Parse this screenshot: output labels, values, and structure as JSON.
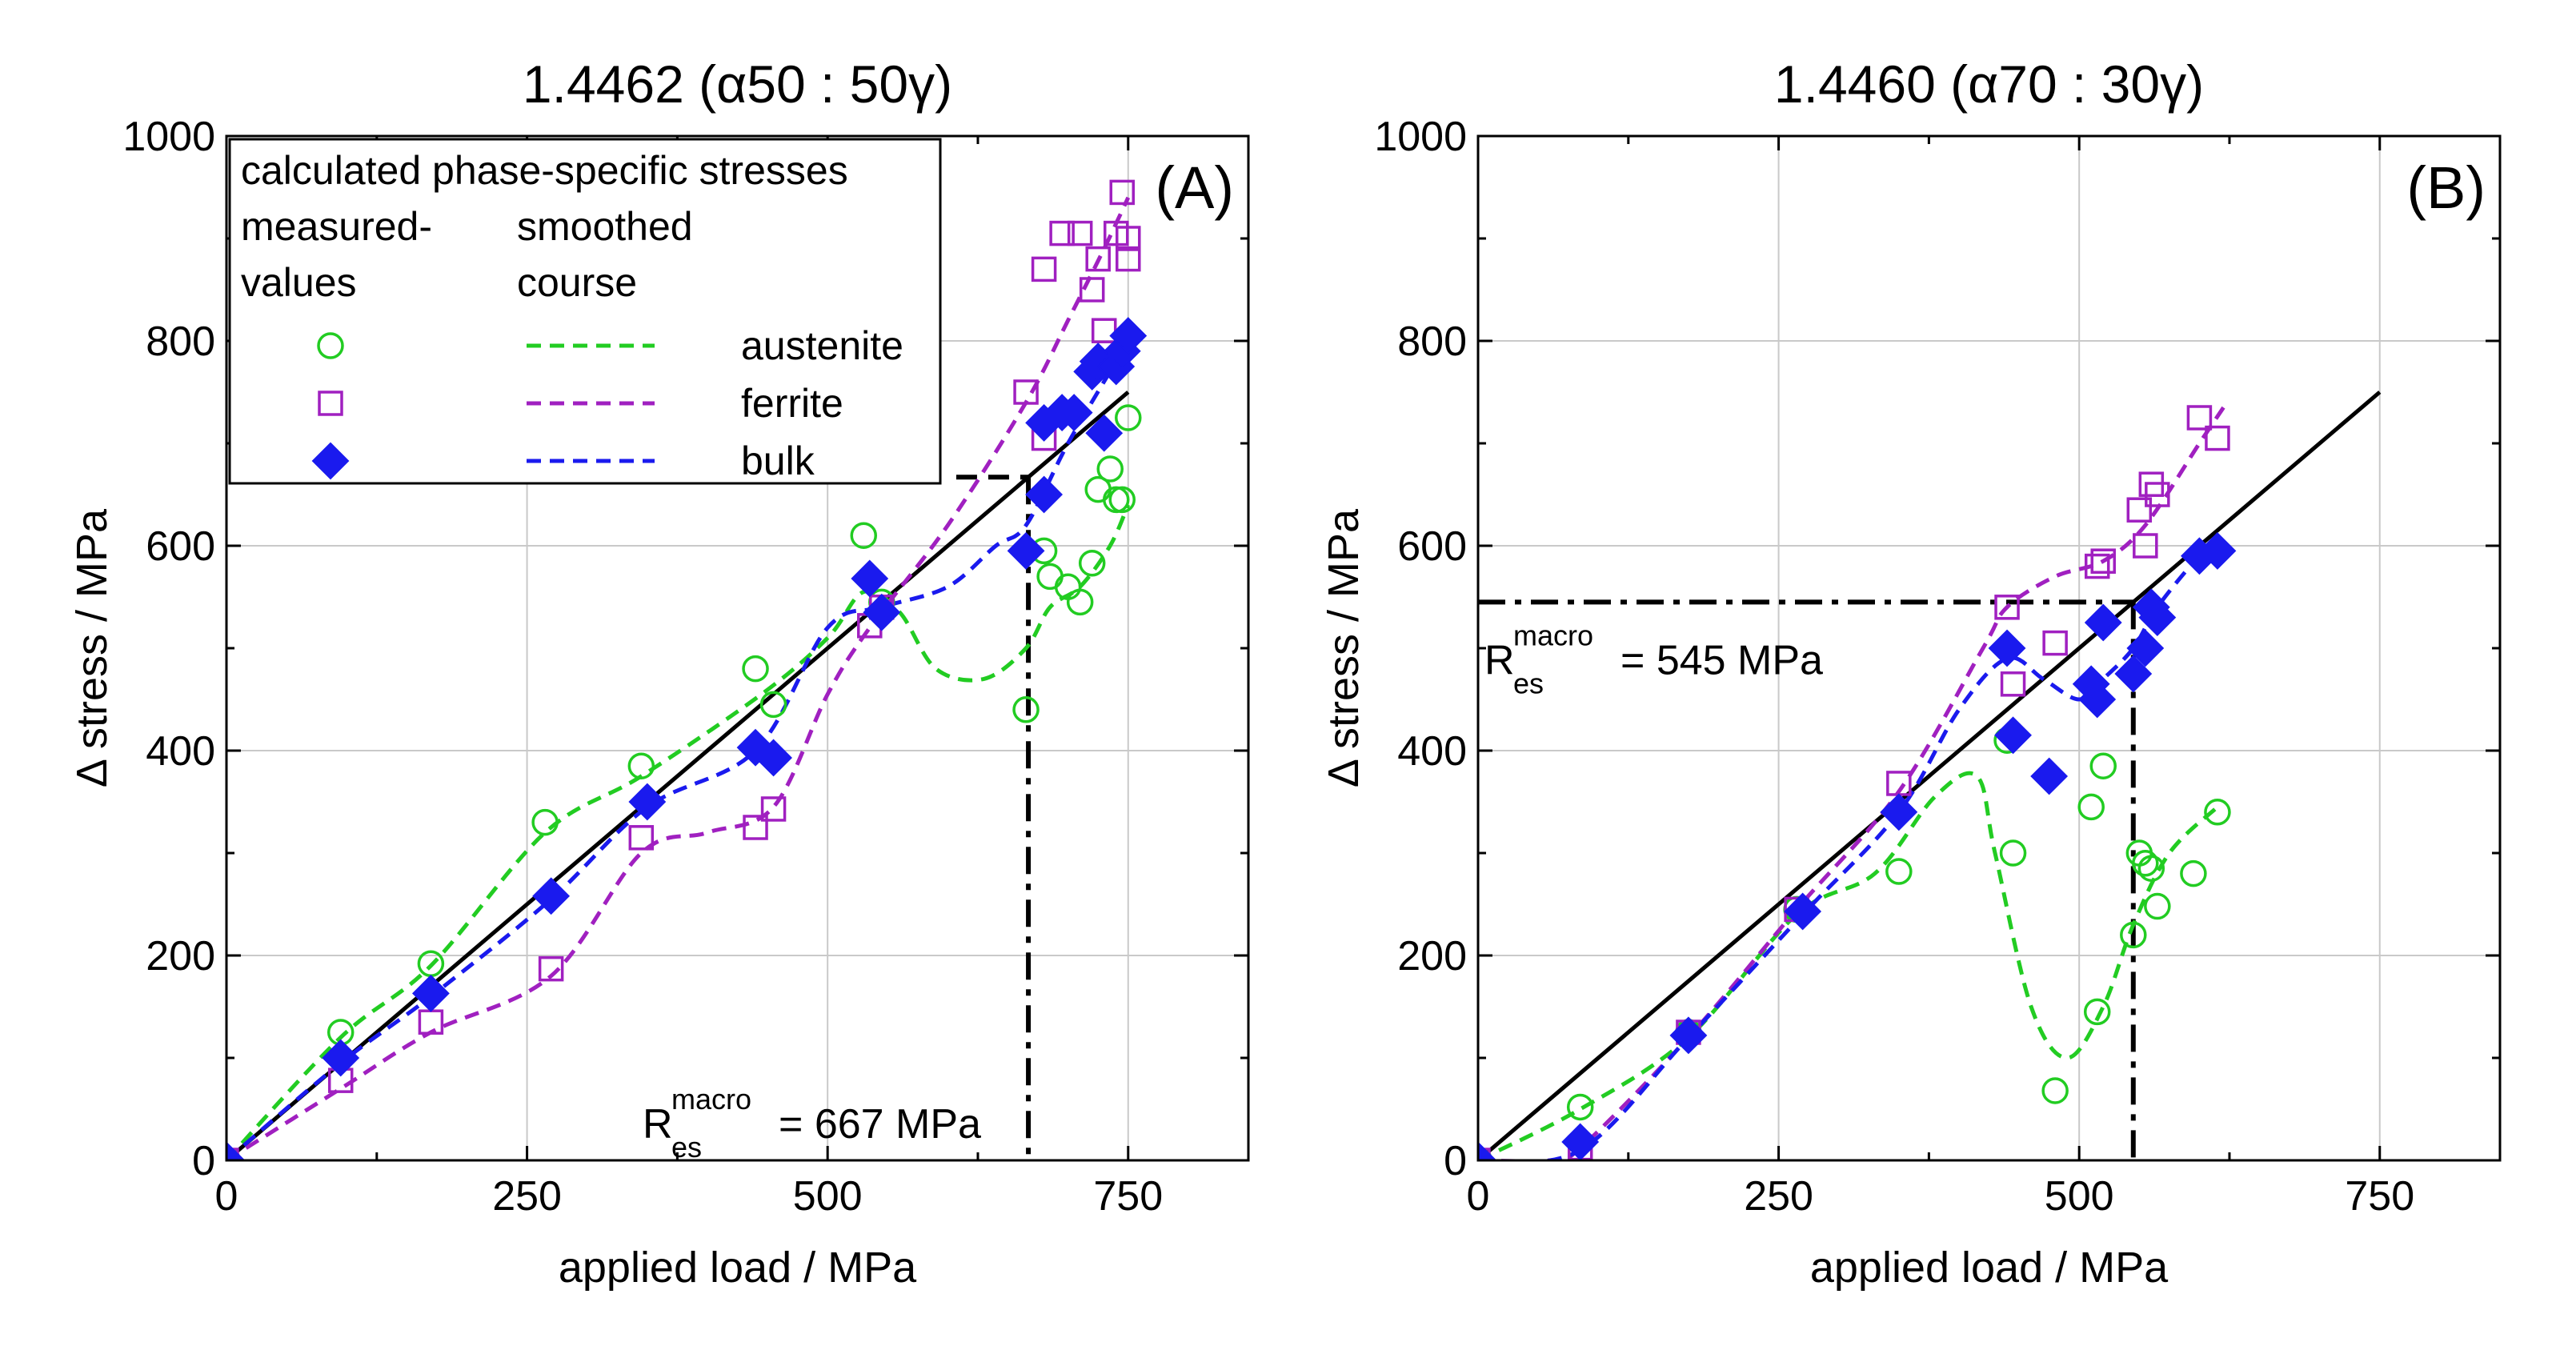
{
  "chart_data": [
    {
      "type": "scatter",
      "panel_label": "(A)",
      "title": "1.4462 (α50 : 50γ)",
      "xlabel": "applied load / MPa",
      "ylabel": "Δ stress / MPa",
      "xlim": [
        0,
        850
      ],
      "ylim": [
        0,
        1000
      ],
      "xticks": [
        0,
        250,
        500,
        750
      ],
      "yticks": [
        0,
        200,
        400,
        600,
        800,
        1000
      ],
      "grid": true,
      "legend": {
        "placement": "top-left",
        "header": "calculated phase-specific stresses",
        "col1_header": [
          "measured-",
          "values"
        ],
        "col2_header": [
          "smoothed",
          "course"
        ],
        "entries": [
          "austenite",
          "ferrite",
          "bulk"
        ]
      },
      "series": [
        {
          "name": "austenite",
          "color": "#22cc22",
          "marker": "circle",
          "x": [
            0,
            95,
            170,
            265,
            345,
            440,
            455,
            530,
            545,
            665,
            680,
            685,
            700,
            710,
            720,
            725,
            735,
            740,
            745,
            750
          ],
          "y": [
            0,
            125,
            192,
            330,
            385,
            480,
            445,
            610,
            545,
            440,
            595,
            570,
            560,
            545,
            583,
            655,
            675,
            645,
            645,
            725
          ],
          "smooth_x": [
            0,
            95,
            170,
            265,
            345,
            445,
            500,
            530,
            560,
            590,
            630,
            665,
            685,
            710,
            735,
            750
          ],
          "smooth_y": [
            0,
            120,
            190,
            320,
            375,
            455,
            510,
            555,
            535,
            480,
            470,
            500,
            540,
            560,
            600,
            640
          ]
        },
        {
          "name": "ferrite",
          "color": "#a020c0",
          "marker": "square",
          "x": [
            0,
            95,
            170,
            270,
            345,
            440,
            455,
            535,
            545,
            665,
            680,
            680,
            695,
            710,
            720,
            725,
            730,
            740,
            745,
            750,
            750
          ],
          "y": [
            0,
            78,
            135,
            187,
            315,
            325,
            343,
            522,
            540,
            750,
            705,
            870,
            905,
            905,
            850,
            880,
            810,
            905,
            945,
            900,
            880
          ],
          "smooth_x": [
            0,
            95,
            170,
            270,
            345,
            400,
            455,
            500,
            535,
            600,
            665,
            700,
            730,
            750
          ],
          "smooth_y": [
            0,
            70,
            125,
            180,
            300,
            320,
            345,
            455,
            520,
            620,
            740,
            820,
            890,
            940
          ]
        },
        {
          "name": "bulk",
          "color": "#1a1aee",
          "marker": "diamond",
          "x": [
            0,
            95,
            170,
            270,
            350,
            440,
            455,
            535,
            545,
            665,
            680,
            680,
            695,
            705,
            720,
            725,
            730,
            740,
            745,
            750
          ],
          "y": [
            0,
            100,
            163,
            258,
            350,
            403,
            393,
            568,
            535,
            595,
            650,
            720,
            730,
            730,
            770,
            780,
            710,
            775,
            790,
            805
          ],
          "smooth_x": [
            0,
            95,
            170,
            270,
            350,
            440,
            500,
            545,
            600,
            640,
            665,
            700,
            740,
            750
          ],
          "smooth_y": [
            0,
            95,
            160,
            255,
            345,
            400,
            520,
            540,
            560,
            600,
            620,
            700,
            780,
            800
          ]
        }
      ],
      "reference_line": {
        "x": [
          0,
          750
        ],
        "y": [
          0,
          750
        ]
      },
      "annotation": {
        "main": "R",
        "subscript": "es",
        "superscript": "macro",
        "value_text": "= 667 MPa",
        "value": 667
      }
    },
    {
      "type": "scatter",
      "panel_label": "(B)",
      "title": "1.4460 (α70 : 30γ)",
      "xlabel": "applied load / MPa",
      "ylabel": "Δ stress / MPa",
      "xlim": [
        0,
        850
      ],
      "ylim": [
        0,
        1000
      ],
      "xticks": [
        0,
        250,
        500,
        750
      ],
      "yticks": [
        0,
        200,
        400,
        600,
        800,
        1000
      ],
      "grid": true,
      "series": [
        {
          "name": "austenite",
          "color": "#22cc22",
          "marker": "circle",
          "x": [
            0,
            85,
            175,
            265,
            350,
            440,
            445,
            480,
            510,
            515,
            520,
            545,
            550,
            555,
            560,
            565,
            595,
            615
          ],
          "y": [
            0,
            52,
            125,
            245,
            282,
            410,
            300,
            68,
            345,
            145,
            385,
            220,
            300,
            290,
            285,
            248,
            280,
            340
          ],
          "smooth_x": [
            0,
            85,
            175,
            265,
            330,
            380,
            415,
            430,
            460,
            490,
            520,
            545,
            575,
            615
          ],
          "smooth_y": [
            0,
            50,
            120,
            240,
            280,
            355,
            375,
            300,
            150,
            100,
            150,
            230,
            300,
            345
          ]
        },
        {
          "name": "ferrite",
          "color": "#a020c0",
          "marker": "square",
          "x": [
            0,
            85,
            175,
            265,
            350,
            440,
            445,
            480,
            515,
            520,
            550,
            555,
            560,
            565,
            600,
            615
          ],
          "y": [
            0,
            12,
            125,
            245,
            368,
            540,
            465,
            505,
            580,
            585,
            635,
            600,
            660,
            650,
            725,
            705
          ],
          "smooth_x": [
            0,
            60,
            85,
            175,
            265,
            350,
            420,
            440,
            480,
            520,
            555,
            600,
            620
          ],
          "smooth_y": [
            0,
            0,
            12,
            120,
            245,
            360,
            500,
            540,
            570,
            585,
            620,
            700,
            735
          ]
        },
        {
          "name": "bulk",
          "color": "#1a1aee",
          "marker": "diamond",
          "x": [
            0,
            85,
            175,
            270,
            350,
            440,
            445,
            475,
            510,
            515,
            520,
            545,
            555,
            560,
            565,
            600,
            615
          ],
          "y": [
            0,
            18,
            122,
            243,
            340,
            500,
            415,
            375,
            465,
            450,
            525,
            475,
            500,
            540,
            530,
            590,
            595
          ],
          "smooth_x": [
            0,
            85,
            175,
            270,
            350,
            400,
            440,
            470,
            500,
            520,
            545,
            565,
            600,
            615
          ],
          "smooth_y": [
            0,
            10,
            120,
            240,
            340,
            440,
            490,
            470,
            450,
            470,
            500,
            540,
            590,
            600
          ]
        }
      ],
      "reference_line": {
        "x": [
          0,
          750
        ],
        "y": [
          0,
          750
        ]
      },
      "annotation": {
        "main": "R",
        "subscript": "es",
        "superscript": "macro",
        "value_text": "= 545 MPa",
        "value": 545
      }
    }
  ]
}
